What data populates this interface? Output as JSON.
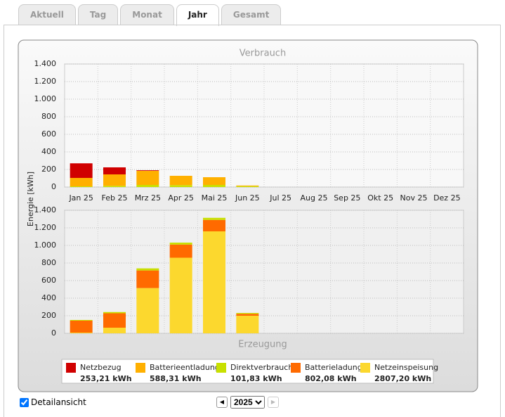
{
  "tabs": [
    "Aktuell",
    "Tag",
    "Monat",
    "Jahr",
    "Gesamt"
  ],
  "active_tab": "Jahr",
  "ylabel": "Energie [kWh]",
  "chart_data": [
    {
      "type": "bar",
      "stacked": true,
      "title": "Verbrauch",
      "categories": [
        "Jan 25",
        "Feb 25",
        "Mrz 25",
        "Apr 25",
        "Mai 25",
        "Jun 25",
        "Jul 25",
        "Aug 25",
        "Sep 25",
        "Okt 25",
        "Nov 25",
        "Dez 25"
      ],
      "series": [
        {
          "name": "Direktverbrauch",
          "color": "#c8e000",
          "total": "101,83 kWh",
          "values": [
            8,
            14,
            24,
            22,
            24,
            10,
            null,
            null,
            null,
            null,
            null,
            null
          ]
        },
        {
          "name": "Batterieentladung",
          "color": "#ffb000",
          "total": "588,31 kWh",
          "values": [
            96,
            130,
            160,
            106,
            88,
            8,
            null,
            null,
            null,
            null,
            null,
            null
          ]
        },
        {
          "name": "Netzbezug",
          "color": "#d00000",
          "total": "253,21 kWh",
          "values": [
            166,
            80,
            7,
            null,
            null,
            null,
            null,
            null,
            null,
            null,
            null,
            null
          ]
        }
      ],
      "ylim": [
        0,
        1400
      ],
      "yticks": [
        0,
        200,
        400,
        600,
        800,
        {
          "value": 1000,
          "label": "1.000"
        },
        {
          "value": 1200,
          "label": "1.200"
        },
        {
          "value": 1400,
          "label": "1.400"
        }
      ],
      "grid": true
    },
    {
      "type": "bar",
      "stacked": true,
      "title": "Erzeugung",
      "series": [
        {
          "name": "Netzeinspeisung",
          "color": "#fcd82e",
          "total": "2807,20 kWh",
          "values": [
            8,
            64,
            515,
            860,
            1160,
            200,
            null,
            null,
            null,
            null,
            null,
            null
          ]
        },
        {
          "name": "Batterieladung",
          "color": "#ff6a00",
          "total": "802,08 kWh",
          "values": [
            136,
            164,
            200,
            150,
            130,
            22,
            null,
            null,
            null,
            null,
            null,
            null
          ]
        },
        {
          "color": "#c8e000",
          "values": [
            8,
            14,
            24,
            22,
            24,
            10,
            null,
            null,
            null,
            null,
            null,
            null
          ]
        }
      ],
      "ylim": [
        0,
        1400
      ],
      "yticks": [
        0,
        200,
        400,
        600,
        800,
        {
          "value": 1000,
          "label": "1.000"
        },
        {
          "value": 1200,
          "label": "1.200"
        },
        {
          "value": 1400,
          "label": "1.400"
        }
      ],
      "grid": true
    }
  ],
  "detail_checkbox": "Detailansicht",
  "year_select": "2025"
}
